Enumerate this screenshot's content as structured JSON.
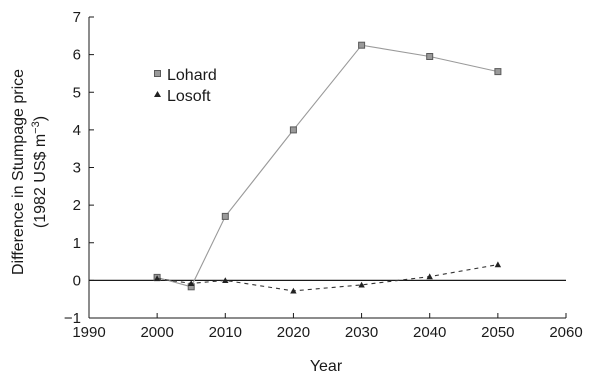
{
  "chart_data": {
    "type": "line",
    "title": "",
    "xlabel": "Year",
    "ylabel_line1": "Difference in Stumpage price",
    "ylabel_line2_prefix": "(1982 US$ m",
    "ylabel_line2_sup": "−3",
    "ylabel_line2_suffix": ")",
    "xlim": [
      1990,
      2060
    ],
    "ylim": [
      -1,
      7
    ],
    "xticks": [
      1990,
      2000,
      2010,
      2020,
      2030,
      2040,
      2050,
      2060
    ],
    "yticks": [
      -1,
      0,
      1,
      2,
      3,
      4,
      5,
      6,
      7
    ],
    "zero_line": true,
    "grid": false,
    "legend_position": "upper-left",
    "series": [
      {
        "name": "Lohard",
        "marker": "square",
        "line_style": "solid",
        "color": "#9a9a9a",
        "x": [
          2000,
          2005,
          2010,
          2020,
          2030,
          2040,
          2050
        ],
        "y": [
          0.08,
          -0.17,
          1.7,
          4.0,
          6.25,
          5.95,
          5.55
        ]
      },
      {
        "name": "Losoft",
        "marker": "triangle",
        "line_style": "dashed",
        "color": "#222222",
        "x": [
          2000,
          2005,
          2010,
          2020,
          2030,
          2040,
          2050
        ],
        "y": [
          0.05,
          -0.08,
          0.0,
          -0.28,
          -0.12,
          0.1,
          0.42
        ]
      }
    ]
  }
}
